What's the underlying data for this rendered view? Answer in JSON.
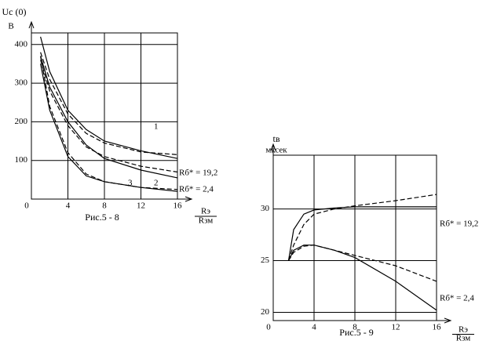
{
  "chart_data": [
    {
      "type": "line",
      "title": "Рис.5 - 8",
      "ylabel": "Uc (0)",
      "yunit": "B",
      "xlabel": "Rэ",
      "xlabel2": "Rзм",
      "x": [
        1,
        2,
        4,
        6,
        8,
        12,
        16
      ],
      "series": [
        {
          "color": "#000000",
          "dash": false,
          "values": [
            420,
            330,
            230,
            180,
            150,
            125,
            105
          ]
        },
        {
          "color": "#000000",
          "dash": true,
          "values": [
            380,
            310,
            220,
            170,
            145,
            122,
            115
          ]
        },
        {
          "color": "#000000",
          "dash": false,
          "values": [
            370,
            290,
            200,
            140,
            105,
            75,
            55
          ]
        },
        {
          "color": "#000000",
          "dash": true,
          "values": [
            360,
            280,
            190,
            135,
            110,
            85,
            70
          ]
        },
        {
          "color": "#000000",
          "dash": false,
          "values": [
            350,
            230,
            110,
            60,
            45,
            30,
            20
          ]
        },
        {
          "color": "#000000",
          "dash": true,
          "values": [
            370,
            240,
            120,
            65,
            45,
            30,
            25
          ]
        }
      ],
      "annotations": [
        "1",
        "2",
        "3",
        "Rб* = 19,2",
        "Rб* = 2,4"
      ],
      "xlim": [
        0,
        16
      ],
      "ylim": [
        0,
        430
      ],
      "xticks": [
        0,
        4,
        8,
        12,
        16
      ],
      "yticks": [
        100,
        200,
        300,
        400
      ],
      "grid": true
    },
    {
      "type": "line",
      "title": "Рис.5 - 9",
      "ylabel": "tв",
      "yunit": "мксек",
      "xlabel": "Rэ",
      "xlabel2": "Rзм",
      "x": [
        1.5,
        2,
        3,
        4,
        6,
        8,
        12,
        16
      ],
      "series": [
        {
          "color": "#000000",
          "dash": false,
          "values": [
            25,
            28,
            29.5,
            29.9,
            30.1,
            30.2,
            30.2,
            30.2
          ]
        },
        {
          "color": "#000000",
          "dash": true,
          "values": [
            25,
            26.5,
            28.5,
            29.5,
            30,
            30.3,
            30.8,
            31.4
          ]
        },
        {
          "color": "#000000",
          "dash": false,
          "values": [
            25,
            26,
            26.5,
            26.5,
            26,
            25.3,
            23,
            20.2
          ]
        },
        {
          "color": "#000000",
          "dash": true,
          "values": [
            25,
            25.8,
            26.4,
            26.5,
            26,
            25.5,
            24.5,
            23
          ]
        }
      ],
      "annotations": [
        "Rб* = 19,2",
        "Rб* = 2,4"
      ],
      "xlim": [
        0,
        16
      ],
      "ylim": [
        19.2,
        35.2
      ],
      "xticks": [
        0,
        4,
        8,
        12,
        16
      ],
      "yticks": [
        20,
        25,
        30
      ],
      "grid": true
    }
  ]
}
